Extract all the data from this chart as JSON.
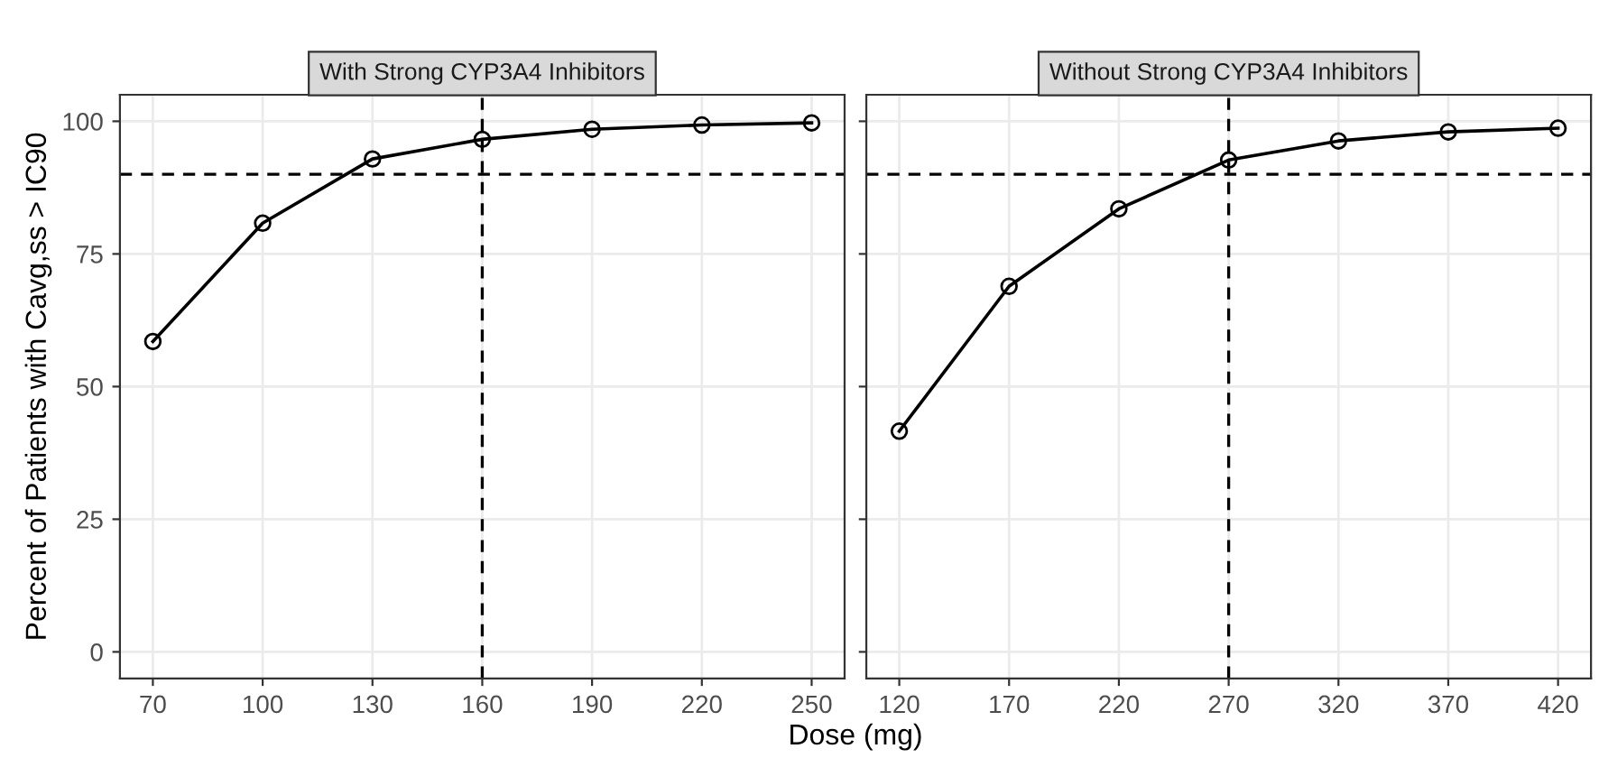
{
  "chart_data": [
    {
      "type": "line",
      "title": "With Strong CYP3A4 Inhibitors",
      "xlabel": "Dose (mg)",
      "ylabel": "Percent of Patients with Cavg,ss > IC90",
      "x": [
        70,
        100,
        130,
        160,
        190,
        220,
        250
      ],
      "series": [
        {
          "color": "#000000",
          "values": [
            58.5,
            80.8,
            92.9,
            96.6,
            98.5,
            99.3,
            99.7
          ]
        }
      ],
      "xlim": [
        61,
        259
      ],
      "xticks": [
        70,
        100,
        130,
        160,
        190,
        220,
        250
      ],
      "ylim": [
        -5,
        105
      ],
      "yticks": [
        0,
        25,
        50,
        75,
        100
      ],
      "ref_lines": [
        {
          "axis": "y",
          "value": 90,
          "color": "#000000",
          "line_style": "dashed"
        },
        {
          "axis": "x",
          "value": 160,
          "color": "#000000",
          "line_style": "dashed"
        }
      ],
      "grid": true,
      "legend": false,
      "marker": "circle",
      "line_style": "solid"
    },
    {
      "type": "line",
      "title": "Without Strong CYP3A4 Inhibitors",
      "x": [
        120,
        170,
        220,
        270,
        320,
        370,
        420
      ],
      "series": [
        {
          "color": "#000000",
          "values": [
            41.6,
            68.9,
            83.5,
            92.7,
            96.3,
            98.0,
            98.7
          ]
        }
      ],
      "xlim": [
        105,
        435
      ],
      "xticks": [
        120,
        170,
        220,
        270,
        320,
        370,
        420
      ],
      "ylim": [
        -5,
        105
      ],
      "yticks": [
        0,
        25,
        50,
        75,
        100
      ],
      "ref_lines": [
        {
          "axis": "y",
          "value": 90,
          "color": "#000000",
          "line_style": "dashed"
        },
        {
          "axis": "x",
          "value": 270,
          "color": "#000000",
          "line_style": "dashed"
        }
      ],
      "grid": true,
      "legend": false,
      "marker": "circle",
      "line_style": "solid",
      "tick_labels": "x"
    }
  ]
}
